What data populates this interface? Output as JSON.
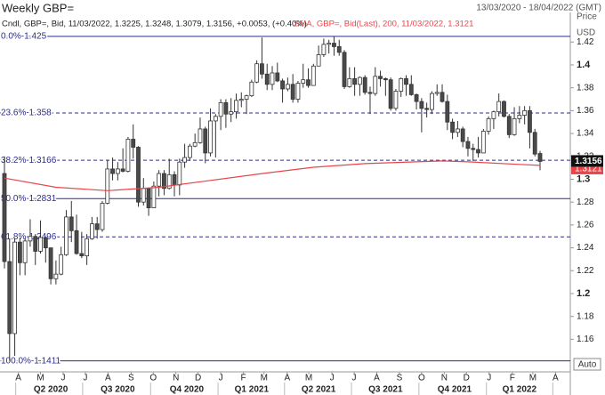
{
  "chart_data": {
    "type": "candlestick",
    "title": "Weekly GBP=",
    "date_range": "13/03/2020 - 18/04/2022 (GMT)",
    "legend_candles": "Cndl, GBP=, Bid, 11/03/2022, 1.3225, 1.3248, 1.3079, 1.3156, +0.0053, (+0.40%)",
    "legend_sma": "SMA, GBP=, Bid(Last), 200, 11/03/2022, 1.3121",
    "price_label": "Price",
    "currency_label": "USD",
    "auto_label": "Auto",
    "up_color": "#ffffff",
    "down_color": "#4a4a4a",
    "outline_color": "#333333",
    "candles": [
      [
        1.305,
        1.32,
        1.222,
        1.228
      ],
      [
        1.228,
        1.248,
        1.1411,
        1.165
      ],
      [
        1.165,
        1.2485,
        1.1455,
        1.245
      ],
      [
        1.245,
        1.249,
        1.216,
        1.227
      ],
      [
        1.227,
        1.2485,
        1.216,
        1.246
      ],
      [
        1.246,
        1.265,
        1.241,
        1.25
      ],
      [
        1.25,
        1.252,
        1.225,
        1.237
      ],
      [
        1.237,
        1.264,
        1.235,
        1.249
      ],
      [
        1.249,
        1.25,
        1.227,
        1.24
      ],
      [
        1.24,
        1.24,
        1.208,
        1.213
      ],
      [
        1.213,
        1.229,
        1.208,
        1.217
      ],
      [
        1.217,
        1.241,
        1.216,
        1.234
      ],
      [
        1.234,
        1.273,
        1.233,
        1.267
      ],
      [
        1.267,
        1.281,
        1.245,
        1.255
      ],
      [
        1.255,
        1.269,
        1.234,
        1.235
      ],
      [
        1.235,
        1.254,
        1.231,
        1.233
      ],
      [
        1.233,
        1.252,
        1.225,
        1.248
      ],
      [
        1.248,
        1.267,
        1.247,
        1.261
      ],
      [
        1.261,
        1.267,
        1.248,
        1.256
      ],
      [
        1.256,
        1.281,
        1.254,
        1.279
      ],
      [
        1.279,
        1.317,
        1.278,
        1.309
      ],
      [
        1.309,
        1.319,
        1.299,
        1.305
      ],
      [
        1.305,
        1.315,
        1.299,
        1.309
      ],
      [
        1.309,
        1.327,
        1.306,
        1.307
      ],
      [
        1.307,
        1.337,
        1.306,
        1.335
      ],
      [
        1.335,
        1.348,
        1.318,
        1.328
      ],
      [
        1.328,
        1.329,
        1.276,
        1.28
      ],
      [
        1.28,
        1.301,
        1.277,
        1.292
      ],
      [
        1.292,
        1.292,
        1.268,
        1.275
      ],
      [
        1.275,
        1.298,
        1.275,
        1.294
      ],
      [
        1.294,
        1.308,
        1.285,
        1.305
      ],
      [
        1.305,
        1.308,
        1.286,
        1.292
      ],
      [
        1.292,
        1.318,
        1.291,
        1.304
      ],
      [
        1.304,
        1.307,
        1.285,
        1.295
      ],
      [
        1.295,
        1.318,
        1.286,
        1.315
      ],
      [
        1.315,
        1.331,
        1.31,
        1.319
      ],
      [
        1.319,
        1.331,
        1.316,
        1.329
      ],
      [
        1.329,
        1.34,
        1.328,
        1.332
      ],
      [
        1.332,
        1.354,
        1.331,
        1.344
      ],
      [
        1.344,
        1.346,
        1.314,
        1.323
      ],
      [
        1.323,
        1.362,
        1.32,
        1.351
      ],
      [
        1.351,
        1.357,
        1.319,
        1.355
      ],
      [
        1.355,
        1.37,
        1.343,
        1.367
      ],
      [
        1.367,
        1.37,
        1.345,
        1.357
      ],
      [
        1.357,
        1.371,
        1.35,
        1.359
      ],
      [
        1.359,
        1.375,
        1.353,
        1.369
      ],
      [
        1.369,
        1.376,
        1.363,
        1.37
      ],
      [
        1.37,
        1.374,
        1.357,
        1.373
      ],
      [
        1.373,
        1.387,
        1.372,
        1.385
      ],
      [
        1.385,
        1.404,
        1.384,
        1.401
      ],
      [
        1.401,
        1.424,
        1.388,
        1.392
      ],
      [
        1.392,
        1.401,
        1.378,
        1.383
      ],
      [
        1.383,
        1.399,
        1.378,
        1.393
      ],
      [
        1.393,
        1.402,
        1.385,
        1.386
      ],
      [
        1.386,
        1.388,
        1.367,
        1.379
      ],
      [
        1.379,
        1.389,
        1.377,
        1.383
      ],
      [
        1.383,
        1.392,
        1.367,
        1.37
      ],
      [
        1.37,
        1.386,
        1.367,
        1.384
      ],
      [
        1.384,
        1.401,
        1.38,
        1.387
      ],
      [
        1.387,
        1.397,
        1.38,
        1.382
      ],
      [
        1.382,
        1.401,
        1.382,
        1.399
      ],
      [
        1.399,
        1.417,
        1.399,
        1.409
      ],
      [
        1.409,
        1.423,
        1.407,
        1.418
      ],
      [
        1.418,
        1.422,
        1.41,
        1.419
      ],
      [
        1.419,
        1.425,
        1.408,
        1.416
      ],
      [
        1.416,
        1.422,
        1.408,
        1.411
      ],
      [
        1.411,
        1.413,
        1.379,
        1.381
      ],
      [
        1.381,
        1.398,
        1.38,
        1.388
      ],
      [
        1.388,
        1.398,
        1.373,
        1.383
      ],
      [
        1.383,
        1.39,
        1.373,
        1.389
      ],
      [
        1.389,
        1.391,
        1.374,
        1.376
      ],
      [
        1.376,
        1.381,
        1.357,
        1.375
      ],
      [
        1.375,
        1.398,
        1.373,
        1.39
      ],
      [
        1.39,
        1.395,
        1.381,
        1.388
      ],
      [
        1.388,
        1.389,
        1.373,
        1.387
      ],
      [
        1.387,
        1.389,
        1.36,
        1.362
      ],
      [
        1.362,
        1.379,
        1.36,
        1.377
      ],
      [
        1.377,
        1.389,
        1.372,
        1.388
      ],
      [
        1.388,
        1.391,
        1.373,
        1.383
      ],
      [
        1.383,
        1.391,
        1.373,
        1.374
      ],
      [
        1.374,
        1.375,
        1.361,
        1.368
      ],
      [
        1.368,
        1.371,
        1.341,
        1.362
      ],
      [
        1.362,
        1.367,
        1.354,
        1.361
      ],
      [
        1.361,
        1.377,
        1.357,
        1.375
      ],
      [
        1.375,
        1.383,
        1.373,
        1.376
      ],
      [
        1.376,
        1.383,
        1.367,
        1.368
      ],
      [
        1.368,
        1.374,
        1.343,
        1.35
      ],
      [
        1.35,
        1.353,
        1.335,
        1.341
      ],
      [
        1.341,
        1.351,
        1.337,
        1.344
      ],
      [
        1.344,
        1.346,
        1.328,
        1.333
      ],
      [
        1.333,
        1.337,
        1.32,
        1.327
      ],
      [
        1.327,
        1.331,
        1.316,
        1.326
      ],
      [
        1.326,
        1.337,
        1.319,
        1.323
      ],
      [
        1.323,
        1.344,
        1.323,
        1.342
      ],
      [
        1.342,
        1.355,
        1.339,
        1.353
      ],
      [
        1.353,
        1.36,
        1.344,
        1.359
      ],
      [
        1.359,
        1.375,
        1.355,
        1.368
      ],
      [
        1.368,
        1.369,
        1.354,
        1.355
      ],
      [
        1.355,
        1.357,
        1.336,
        1.339
      ],
      [
        1.339,
        1.363,
        1.338,
        1.353
      ],
      [
        1.353,
        1.364,
        1.349,
        1.356
      ],
      [
        1.356,
        1.364,
        1.348,
        1.36
      ],
      [
        1.36,
        1.364,
        1.327,
        1.341
      ],
      [
        1.341,
        1.344,
        1.32,
        1.322
      ],
      [
        1.3225,
        1.3248,
        1.3079,
        1.3156
      ]
    ],
    "sma": {
      "name": "SMA 200",
      "color": "#e8454a",
      "x": [
        0,
        10,
        20,
        30,
        40,
        50,
        60,
        70,
        80,
        85,
        90,
        100,
        104
      ],
      "values": [
        1.301,
        1.293,
        1.29,
        1.293,
        1.299,
        1.305,
        1.3105,
        1.3137,
        1.3152,
        1.316,
        1.3152,
        1.313,
        1.3121
      ]
    },
    "fib_levels": [
      {
        "label": "0.0%-1.425",
        "value": 1.425,
        "dashed": false
      },
      {
        "label": "23.6%-1.358",
        "value": 1.358,
        "dashed": true
      },
      {
        "label": "38.2%-1.3166",
        "value": 1.3166,
        "dashed": true
      },
      {
        "label": "50.0%-1.2831",
        "value": 1.2831,
        "dashed": false
      },
      {
        "label": "61.8%-1.2496",
        "value": 1.2496,
        "dashed": true
      },
      {
        "label": "100.0%-1.1411",
        "value": 1.1411,
        "dashed": false
      }
    ],
    "fib_color": "#2c2c8c",
    "ylim": [
      1.1315,
      1.4459
    ],
    "yticks": [
      1.16,
      1.18,
      1.2,
      1.22,
      1.24,
      1.26,
      1.28,
      1.3,
      1.32,
      1.34,
      1.36,
      1.38,
      1.4,
      1.42
    ],
    "xlim": [
      0,
      104
    ],
    "xticks": [
      {
        "value": 2.7,
        "label": "A"
      },
      {
        "value": 7,
        "label": "M"
      },
      {
        "value": 11.4,
        "label": "J"
      },
      {
        "value": 15.7,
        "label": "J"
      },
      {
        "value": 20.1,
        "label": "A"
      },
      {
        "value": 24.6,
        "label": "S"
      },
      {
        "value": 28.9,
        "label": "O"
      },
      {
        "value": 33.3,
        "label": "N"
      },
      {
        "value": 37.6,
        "label": "D"
      },
      {
        "value": 42,
        "label": "J"
      },
      {
        "value": 46.4,
        "label": "F"
      },
      {
        "value": 50.4,
        "label": "M"
      },
      {
        "value": 54.9,
        "label": "A"
      },
      {
        "value": 59.1,
        "label": "M"
      },
      {
        "value": 63.6,
        "label": "J"
      },
      {
        "value": 67.9,
        "label": "J"
      },
      {
        "value": 72.3,
        "label": "A"
      },
      {
        "value": 76.7,
        "label": "S"
      },
      {
        "value": 81,
        "label": "O"
      },
      {
        "value": 85.4,
        "label": "N"
      },
      {
        "value": 89.7,
        "label": "D"
      },
      {
        "value": 94.1,
        "label": "J"
      },
      {
        "value": 98.6,
        "label": "F"
      },
      {
        "value": 102.6,
        "label": "M"
      },
      {
        "value": 107,
        "label": "A"
      }
    ],
    "quarter_ticks": [
      {
        "value": 9,
        "label": "Q2 2020"
      },
      {
        "value": 22,
        "label": "Q3 2020"
      },
      {
        "value": 35.4,
        "label": "Q4 2020"
      },
      {
        "value": 48,
        "label": "Q1 2021"
      },
      {
        "value": 61,
        "label": "Q2 2021"
      },
      {
        "value": 74,
        "label": "Q3 2021"
      },
      {
        "value": 87.4,
        "label": "Q4 2021"
      },
      {
        "value": 100,
        "label": "Q1 2022"
      }
    ]
  }
}
